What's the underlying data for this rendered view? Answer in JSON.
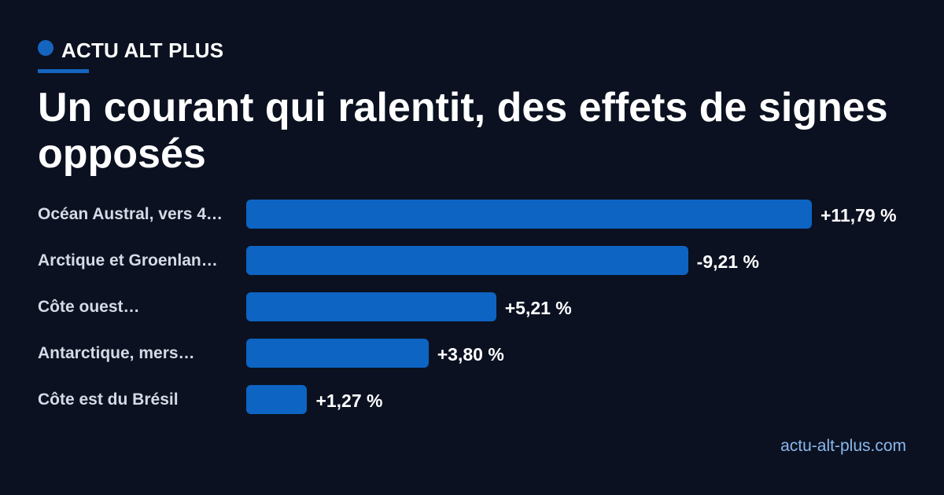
{
  "brand": {
    "name": "ACTU ALT PLUS"
  },
  "site": "actu-alt-plus.com",
  "colors": {
    "background": "#0b1120",
    "accent": "#1565c0",
    "bar": "#0d64c2",
    "label": "#d4dbe6",
    "site": "#8ab8ee"
  },
  "chart_data": {
    "type": "bar",
    "orientation": "horizontal",
    "title": "Un courant qui ralentit, des effets de signes opposés",
    "categories": [
      "Océan Austral, vers 4…",
      "Arctique et Groenlan…",
      "Côte ouest…",
      "Antarctique, mers…",
      "Côte est du Brésil"
    ],
    "values": [
      11.79,
      -9.21,
      5.21,
      3.8,
      1.27
    ],
    "value_labels": [
      "+11,79 %",
      "-9,21 %",
      "+5,21 %",
      "+3,80 %",
      "+1,27 %"
    ],
    "bar_length": "absolute value",
    "grid": false,
    "legend": "none"
  }
}
